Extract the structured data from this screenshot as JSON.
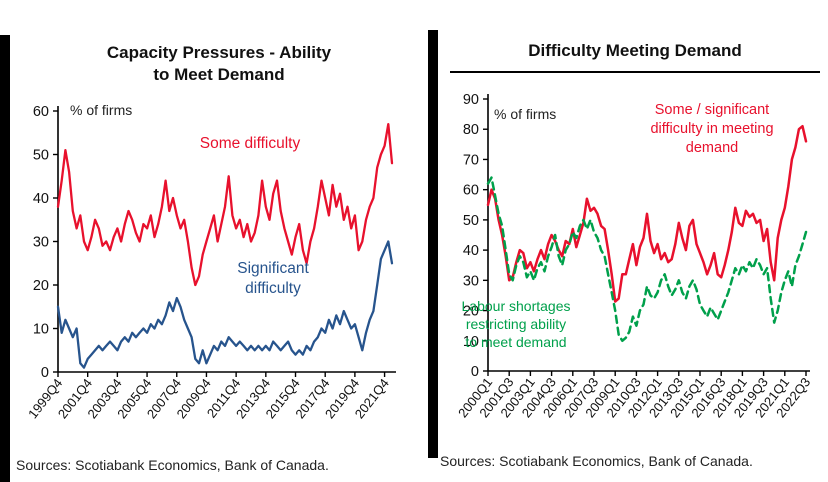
{
  "page": {
    "background": "#ffffff",
    "accent_black_bar": "#000000"
  },
  "panels": {
    "left": {
      "title": "Capacity Pressures - Ability\nto Meet Demand",
      "units_label": "% of firms",
      "annotation_some": "Some difficulty",
      "annotation_significant": "Significant\ndifficulty",
      "sources": "Sources: Scotiabank Economics, Bank of Canada."
    },
    "right": {
      "title": "Difficulty Meeting Demand",
      "units_label": "% of firms",
      "annotation_red": "Some / significant\ndifficulty in meeting\ndemand",
      "annotation_green": "Labour shortages\nrestricting ability\nto meet demand",
      "sources": "Sources: Scotiabank Economics, Bank of Canada."
    }
  },
  "chart_data": [
    {
      "id": "capacity-pressures",
      "type": "line",
      "title": "Capacity Pressures - Ability to Meet Demand",
      "ylabel": "% of firms",
      "xlabel": "",
      "ylim": [
        0,
        60
      ],
      "ytick_step": 10,
      "grid": false,
      "legend_position": "annotations-in-plot",
      "x_freq": "quarterly",
      "x_range": [
        "1999Q4",
        "2022Q2"
      ],
      "x_tick_labels": [
        "1999Q4",
        "2001Q4",
        "2003Q4",
        "2005Q4",
        "2007Q4",
        "2009Q4",
        "2011Q4",
        "2013Q4",
        "2015Q4",
        "2017Q4",
        "2019Q4",
        "2021Q4"
      ],
      "x_tick_indices": [
        0,
        8,
        16,
        24,
        32,
        40,
        48,
        56,
        64,
        72,
        80,
        88
      ],
      "series": [
        {
          "name": "Some difficulty",
          "color": "#e8112d",
          "dash": null,
          "width": 2.3,
          "values": [
            38,
            44,
            51,
            46,
            37,
            33,
            36,
            30,
            28,
            31,
            35,
            33,
            29,
            30,
            28,
            31,
            33,
            30,
            34,
            37,
            35,
            32,
            30,
            34,
            33,
            36,
            31,
            34,
            38,
            44,
            37,
            40,
            36,
            33,
            35,
            30,
            24,
            20,
            22,
            27,
            30,
            33,
            36,
            30,
            34,
            38,
            45,
            36,
            33,
            35,
            31,
            34,
            30,
            32,
            36,
            44,
            38,
            35,
            41,
            44,
            37,
            33,
            30,
            27,
            31,
            34,
            28,
            25,
            30,
            33,
            38,
            44,
            40,
            36,
            43,
            38,
            41,
            35,
            38,
            33,
            36,
            28,
            30,
            35,
            38,
            40,
            47,
            50,
            52,
            57,
            48
          ]
        },
        {
          "name": "Significant difficulty",
          "color": "#27548d",
          "dash": null,
          "width": 2.3,
          "values": [
            15,
            9,
            12,
            10,
            8,
            10,
            2,
            1,
            3,
            4,
            5,
            6,
            5,
            6,
            7,
            6,
            5,
            7,
            8,
            7,
            9,
            8,
            9,
            10,
            9,
            11,
            10,
            12,
            11,
            13,
            16,
            14,
            17,
            15,
            12,
            10,
            8,
            3,
            2,
            5,
            2,
            4,
            6,
            5,
            7,
            6,
            8,
            7,
            6,
            7,
            6,
            5,
            6,
            5,
            6,
            5,
            6,
            5,
            7,
            6,
            5,
            6,
            7,
            5,
            4,
            5,
            4,
            6,
            5,
            7,
            8,
            10,
            9,
            12,
            10,
            13,
            11,
            14,
            12,
            10,
            11,
            8,
            5,
            9,
            12,
            14,
            20,
            26,
            28,
            30,
            25
          ]
        }
      ]
    },
    {
      "id": "difficulty-meeting-demand",
      "type": "line",
      "title": "Difficulty Meeting Demand",
      "ylabel": "% of firms",
      "xlabel": "",
      "ylim": [
        0,
        90
      ],
      "ytick_step": 10,
      "grid": false,
      "legend_position": "annotations-in-plot",
      "x_freq": "quarterly",
      "x_range": [
        "2000Q1",
        "2022Q3"
      ],
      "x_tick_labels": [
        "2000Q1",
        "2001Q3",
        "2003Q1",
        "2004Q3",
        "2006Q1",
        "2007Q3",
        "2009Q1",
        "2010Q3",
        "2012Q1",
        "2013Q3",
        "2015Q1",
        "2016Q3",
        "2018Q1",
        "2019Q3",
        "2021Q1",
        "2022Q3"
      ],
      "x_tick_indices": [
        0,
        6,
        12,
        18,
        24,
        30,
        36,
        42,
        48,
        54,
        60,
        66,
        72,
        78,
        84,
        90
      ],
      "series": [
        {
          "name": "Some / significant difficulty in meeting demand",
          "color": "#e8112d",
          "dash": null,
          "width": 2.5,
          "values": [
            55,
            60,
            57,
            50,
            45,
            38,
            30,
            31,
            36,
            40,
            39,
            34,
            36,
            33,
            37,
            40,
            37,
            42,
            45,
            43,
            40,
            38,
            43,
            42,
            47,
            41,
            45,
            49,
            57,
            53,
            54,
            52,
            48,
            47,
            40,
            32,
            23,
            24,
            32,
            32,
            37,
            42,
            35,
            41,
            44,
            52,
            43,
            39,
            42,
            37,
            39,
            36,
            37,
            42,
            49,
            44,
            40,
            48,
            50,
            42,
            39,
            36,
            32,
            35,
            39,
            32,
            31,
            35,
            40,
            46,
            54,
            49,
            48,
            53,
            51,
            52,
            49,
            50,
            43,
            47,
            36,
            30,
            44,
            50,
            54,
            61,
            70,
            74,
            80,
            81,
            76
          ]
        },
        {
          "name": "Labour shortages restricting ability to meet demand",
          "color": "#00a04b",
          "dash": "7 5",
          "width": 2.5,
          "values": [
            62,
            64,
            58,
            52,
            48,
            40,
            32,
            30,
            35,
            38,
            36,
            31,
            33,
            30,
            34,
            36,
            33,
            38,
            41,
            45,
            38,
            35,
            40,
            42,
            46,
            44,
            48,
            50,
            47,
            50,
            46,
            44,
            40,
            38,
            32,
            26,
            20,
            12,
            10,
            11,
            13,
            18,
            15,
            20,
            22,
            28,
            25,
            24,
            26,
            30,
            32,
            28,
            25,
            27,
            30,
            26,
            24,
            28,
            30,
            27,
            22,
            20,
            18,
            21,
            19,
            17,
            20,
            23,
            26,
            30,
            34,
            32,
            35,
            33,
            36,
            34,
            37,
            35,
            32,
            34,
            24,
            16,
            20,
            26,
            30,
            33,
            28,
            35,
            38,
            42,
            46
          ]
        }
      ]
    }
  ]
}
